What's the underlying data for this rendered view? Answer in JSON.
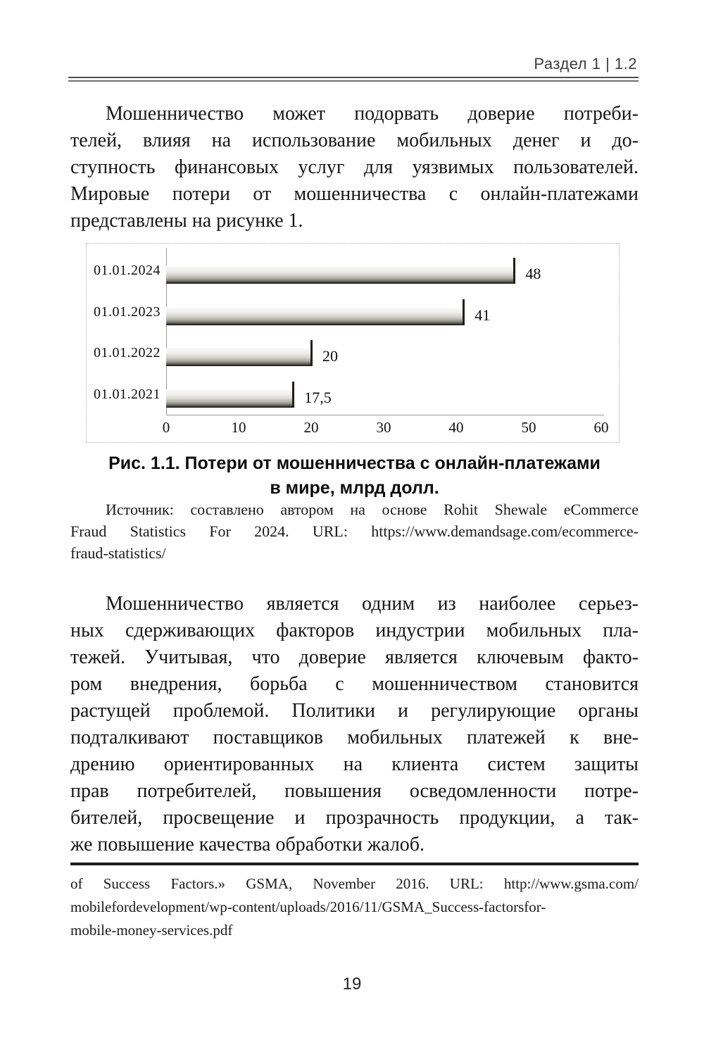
{
  "header": {
    "section_label": "Раздел 1 | 1.2"
  },
  "paragraph1": {
    "lines": [
      "Мошенничество может подорвать доверие потреби-",
      "телей, влияя на использование мобильных денег и до-",
      "ступность финансовых услуг для уязвимых пользователей.",
      "Мировые потери от мошенничества с онлайн-платежами",
      "представлены на рисунке 1."
    ]
  },
  "chart_data": {
    "type": "bar",
    "orientation": "horizontal",
    "title": "Потери от мошенничества с онлайн-платежами в мире, млрд долл.",
    "categories": [
      "01.01.2024",
      "01.01.2023",
      "01.01.2022",
      "01.01.2021"
    ],
    "values": [
      48,
      41,
      20,
      17.5
    ],
    "value_labels": [
      "48",
      "41",
      "20",
      "17,5"
    ],
    "xticks": [
      "0",
      "10",
      "20",
      "30",
      "40",
      "50",
      "60"
    ],
    "xlim": [
      0,
      60
    ],
    "grid": false,
    "legend": false
  },
  "figure": {
    "caption_line1": "Рис. 1.1. Потери от мошенничества с онлайн-платежами",
    "caption_line2": "в мире, млрд долл.",
    "source_lines": [
      "Источник: составлено автором на основе Rohit Shewale eCommerce",
      "Fraud Statistics For 2024. URL: https://www.demandsage.com/ecommerce-",
      "fraud-statistics/"
    ]
  },
  "paragraph2": {
    "lines": [
      "Мошенничество является одним из наиболее серьез-",
      "ных сдерживающих факторов индустрии мобильных пла-",
      "тежей. Учитывая, что доверие является ключевым факто-",
      "ром внедрения, борьба с мошенничеством становится",
      "растущей проблемой. Политики и регулирующие органы",
      "подталкивают поставщиков мобильных платежей к вне-",
      "дрению ориентированных на клиента систем защиты",
      "прав потребителей, повышения осведомленности потре-",
      "бителей, просвещение и прозрачность продукции, а так-",
      "же повышение качества обработки жалоб."
    ]
  },
  "footnote": {
    "lines": [
      "of Success Factors.» GSMA, November 2016. URL: http://www.gsma.com/",
      "mobilefordevelopment/wp-content/uploads/2016/11/GSMA_Success-factorsfor-",
      "mobile-money-services.pdf"
    ]
  },
  "footer": {
    "page_number": "19"
  }
}
